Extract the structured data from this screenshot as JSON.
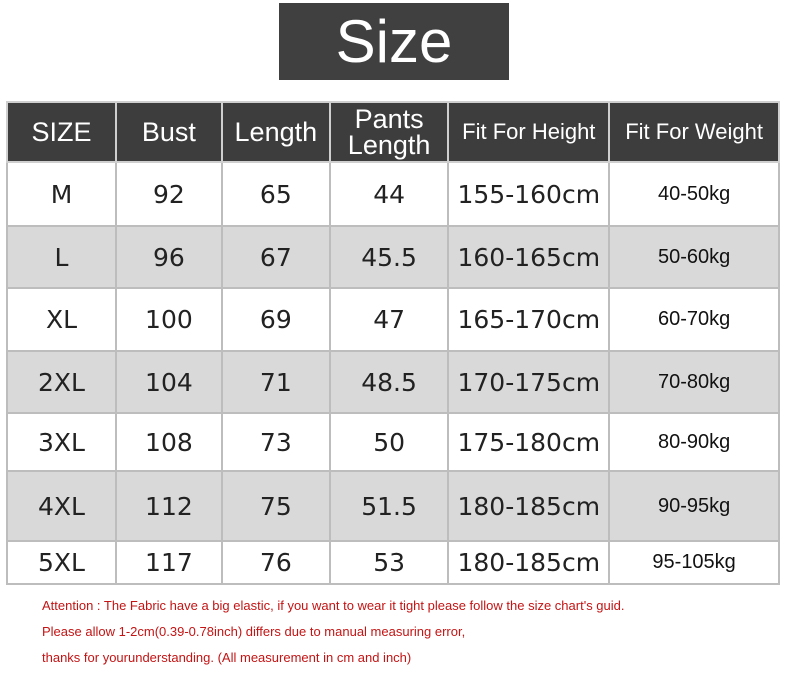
{
  "title": "Size",
  "headers": [
    "SIZE",
    "Bust",
    "Length",
    "Pants Length",
    "Fit For Height",
    "Fit For Weight"
  ],
  "rows": [
    [
      "M",
      "92",
      "65",
      "44",
      "155-160cm",
      "40-50kg"
    ],
    [
      "L",
      "96",
      "67",
      "45.5",
      "160-165cm",
      "50-60kg"
    ],
    [
      "XL",
      "100",
      "69",
      "47",
      "165-170cm",
      "60-70kg"
    ],
    [
      "2XL",
      "104",
      "71",
      "48.5",
      "170-175cm",
      "70-80kg"
    ],
    [
      "3XL",
      "108",
      "73",
      "50",
      "175-180cm",
      "80-90kg"
    ],
    [
      "4XL",
      "112",
      "75",
      "51.5",
      "180-185cm",
      "90-95kg"
    ],
    [
      "5XL",
      "117",
      "76",
      "53",
      "180-185cm",
      "95-105kg"
    ]
  ],
  "notes": [
    "Attention : The Fabric have a big elastic, if you want to wear it tight please follow the size chart's guid.",
    "Please allow 1-2cm(0.39-0.78inch) differs due to manual measuring error,",
    "thanks for yourunderstanding. (All measurement in cm and inch)"
  ]
}
